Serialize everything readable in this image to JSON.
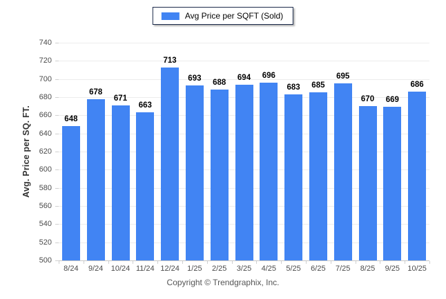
{
  "legend": {
    "label": "Avg Price per SQFT (Sold)",
    "swatch_color": "#4184f3"
  },
  "chart_data": {
    "type": "bar",
    "categories": [
      "8/24",
      "9/24",
      "10/24",
      "11/24",
      "12/24",
      "1/25",
      "2/25",
      "3/25",
      "4/25",
      "5/25",
      "6/25",
      "7/25",
      "8/25",
      "9/25",
      "10/25"
    ],
    "values": [
      648,
      678,
      671,
      663,
      713,
      693,
      688,
      694,
      696,
      683,
      685,
      695,
      670,
      669,
      686
    ],
    "title": "",
    "xlabel": "",
    "ylabel": "Avg. Price per SQ. FT.",
    "ylim": [
      500,
      740
    ],
    "ytick_step": 20,
    "grid": true,
    "legend_position": "top-center",
    "bar_color": "#4184f3",
    "value_labels_shown": true
  },
  "footer": {
    "copyright": "Copyright © Trendgraphix, Inc."
  }
}
